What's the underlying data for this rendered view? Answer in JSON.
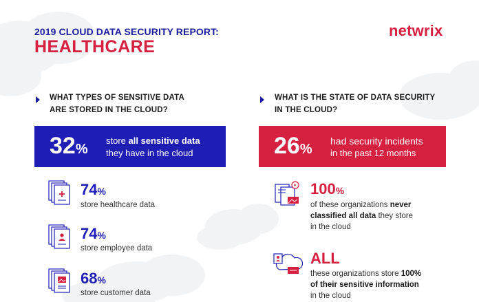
{
  "header": {
    "subtitle": "2019 CLOUD DATA SECURITY REPORT:",
    "title": "HEALTHCARE",
    "logo": "netwrix"
  },
  "left": {
    "question_line1": "WHAT TYPES OF SENSITIVE DATA",
    "question_line2": "ARE STORED IN THE CLOUD?",
    "banner": {
      "number": "32",
      "percent_sign": "%",
      "line1_pre": "store ",
      "line1_bold": "all sensitive data",
      "line2": "they have in the cloud"
    },
    "stats": [
      {
        "number": "74",
        "percent_sign": "%",
        "label": "store healthcare data",
        "icon": "medical-document-icon"
      },
      {
        "number": "74",
        "percent_sign": "%",
        "label": "store employee data",
        "icon": "employee-document-icon"
      },
      {
        "number": "68",
        "percent_sign": "%",
        "label": "store customer data",
        "icon": "customer-document-icon"
      }
    ]
  },
  "right": {
    "question_line1": "WHAT IS THE STATE OF DATA SECURITY",
    "question_line2": "IN THE CLOUD?",
    "banner": {
      "number": "26",
      "percent_sign": "%",
      "line1": "had security incidents",
      "line2": "in the past 12 months"
    },
    "stat1": {
      "number": "100",
      "percent_sign": "%",
      "line1_pre": "of these organizations ",
      "line1_bold": "never",
      "line2_bold": "classified all data",
      "line2_post": " they store",
      "line3": "in the cloud",
      "icon": "classified-documents-icon"
    },
    "stat2": {
      "number": "ALL",
      "line1_pre": "these organizations store ",
      "line1_bold": "100%",
      "line2_bold": "of their sensitive information",
      "line3": "in the cloud",
      "icon": "cloud-storage-icon"
    }
  },
  "colors": {
    "navy": "#1e1eb5",
    "red": "#d6203f",
    "cloud": "#f1f2f4"
  }
}
